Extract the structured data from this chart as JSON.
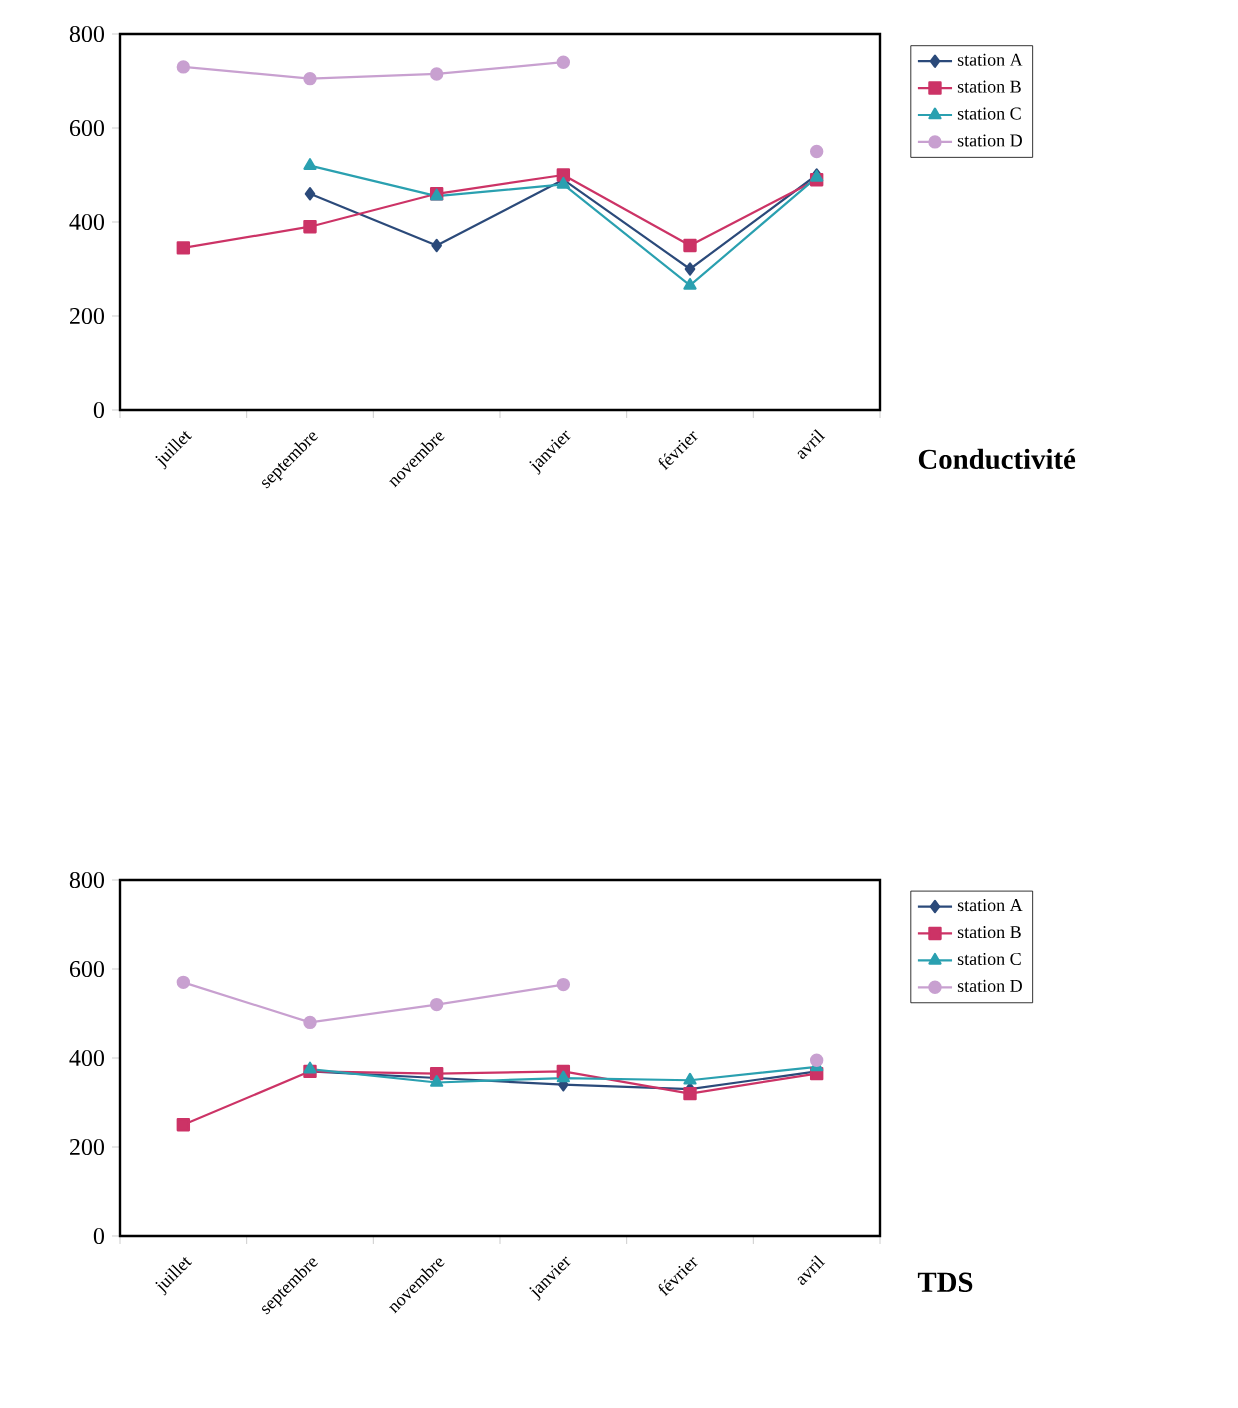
{
  "chart_data": [
    {
      "type": "line",
      "xlabel": "Conductivité",
      "categories": [
        "juillet",
        "septembre",
        "novembre",
        "janvier",
        "février",
        "avril"
      ],
      "ylim": [
        0,
        800
      ],
      "yticks": [
        0,
        200,
        400,
        600,
        800
      ],
      "grid": false,
      "legend": "right",
      "line_style": "solid",
      "series": [
        {
          "name": "station A",
          "color": "#2b4a7a",
          "marker": "diamond",
          "values": [
            null,
            460,
            350,
            490,
            300,
            500
          ]
        },
        {
          "name": "station B",
          "color": "#cc3366",
          "marker": "square",
          "values": [
            345,
            390,
            460,
            500,
            350,
            490
          ]
        },
        {
          "name": "station C",
          "color": "#2aa0b0",
          "marker": "triangle",
          "values": [
            null,
            520,
            455,
            480,
            265,
            495
          ]
        },
        {
          "name": "station D",
          "color": "#c8a0d0",
          "marker": "circle",
          "values": [
            730,
            705,
            715,
            740,
            null,
            550
          ]
        }
      ]
    },
    {
      "type": "line",
      "xlabel": "TDS",
      "categories": [
        "juillet",
        "septembre",
        "novembre",
        "janvier",
        "février",
        "avril"
      ],
      "ylim": [
        0,
        800
      ],
      "yticks": [
        0,
        200,
        400,
        600,
        800
      ],
      "grid": false,
      "legend": "right",
      "line_style": "solid",
      "series": [
        {
          "name": "station A",
          "color": "#2b4a7a",
          "marker": "diamond",
          "values": [
            null,
            370,
            355,
            340,
            330,
            370
          ]
        },
        {
          "name": "station B",
          "color": "#cc3366",
          "marker": "square",
          "values": [
            250,
            370,
            365,
            370,
            320,
            365
          ]
        },
        {
          "name": "station C",
          "color": "#2aa0b0",
          "marker": "triangle",
          "values": [
            null,
            375,
            345,
            355,
            350,
            380
          ]
        },
        {
          "name": "station D",
          "color": "#c8a0d0",
          "marker": "circle",
          "values": [
            570,
            480,
            520,
            565,
            null,
            395
          ]
        }
      ]
    }
  ]
}
